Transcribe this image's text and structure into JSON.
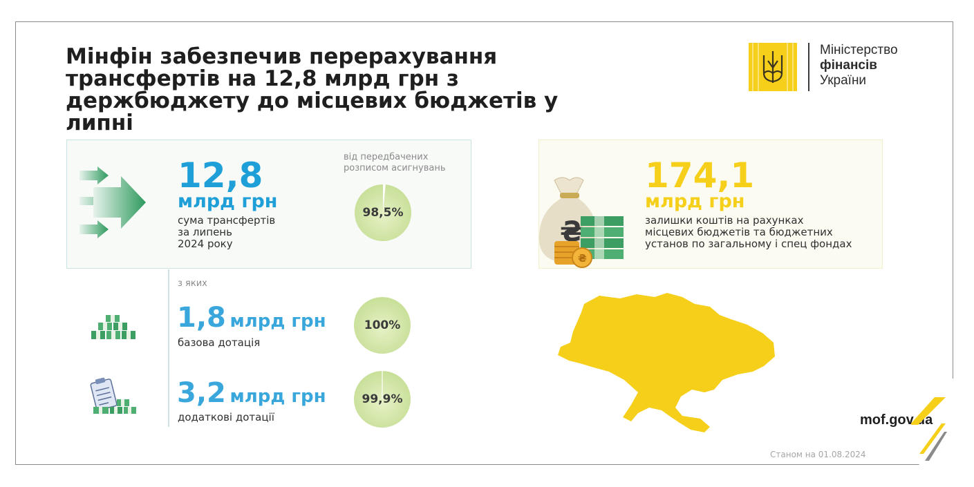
{
  "title": "Мінфін забезпечив перерахування трансфертів на 12,8 млрд грн з держбюджету до місцевих бюджетів у липні",
  "logo": {
    "icon": "trident-icon",
    "line1": "Міністерство",
    "line2": "фінансів",
    "line3": "України"
  },
  "total": {
    "value": "12,8",
    "unit": "млрд грн",
    "desc_line1": "сума трансфертів",
    "desc_line2": "за липень",
    "desc_line3": "2024 року",
    "note_line1": "від передбачених",
    "note_line2": "розписом асигнувань",
    "percent_label": "98,5%",
    "percent_value": 98.5
  },
  "of_which_label": "з яких",
  "base_subsidy": {
    "value": "1,8",
    "unit": "млрд грн",
    "desc": "базова дотація",
    "percent_label": "100%",
    "percent_value": 100
  },
  "extra_subsidy": {
    "value": "3,2",
    "unit": "млрд грн",
    "desc": "додаткові дотації",
    "percent_label": "99,9%",
    "percent_value": 99.9
  },
  "balances": {
    "value": "174,1",
    "unit": "млрд грн",
    "desc_line1": "залишки коштів на рахунках",
    "desc_line2": "місцевих бюджетів та бюджетних",
    "desc_line3": "установ по загальному і спец фондах"
  },
  "website": "mof.gov.ua",
  "as_of": "Станом на 01.08.2024",
  "colors": {
    "blue": "#1f9fd8",
    "yellow": "#f5cf1a",
    "green": "#2e9a5e",
    "circle_green": "#c9e09a"
  }
}
